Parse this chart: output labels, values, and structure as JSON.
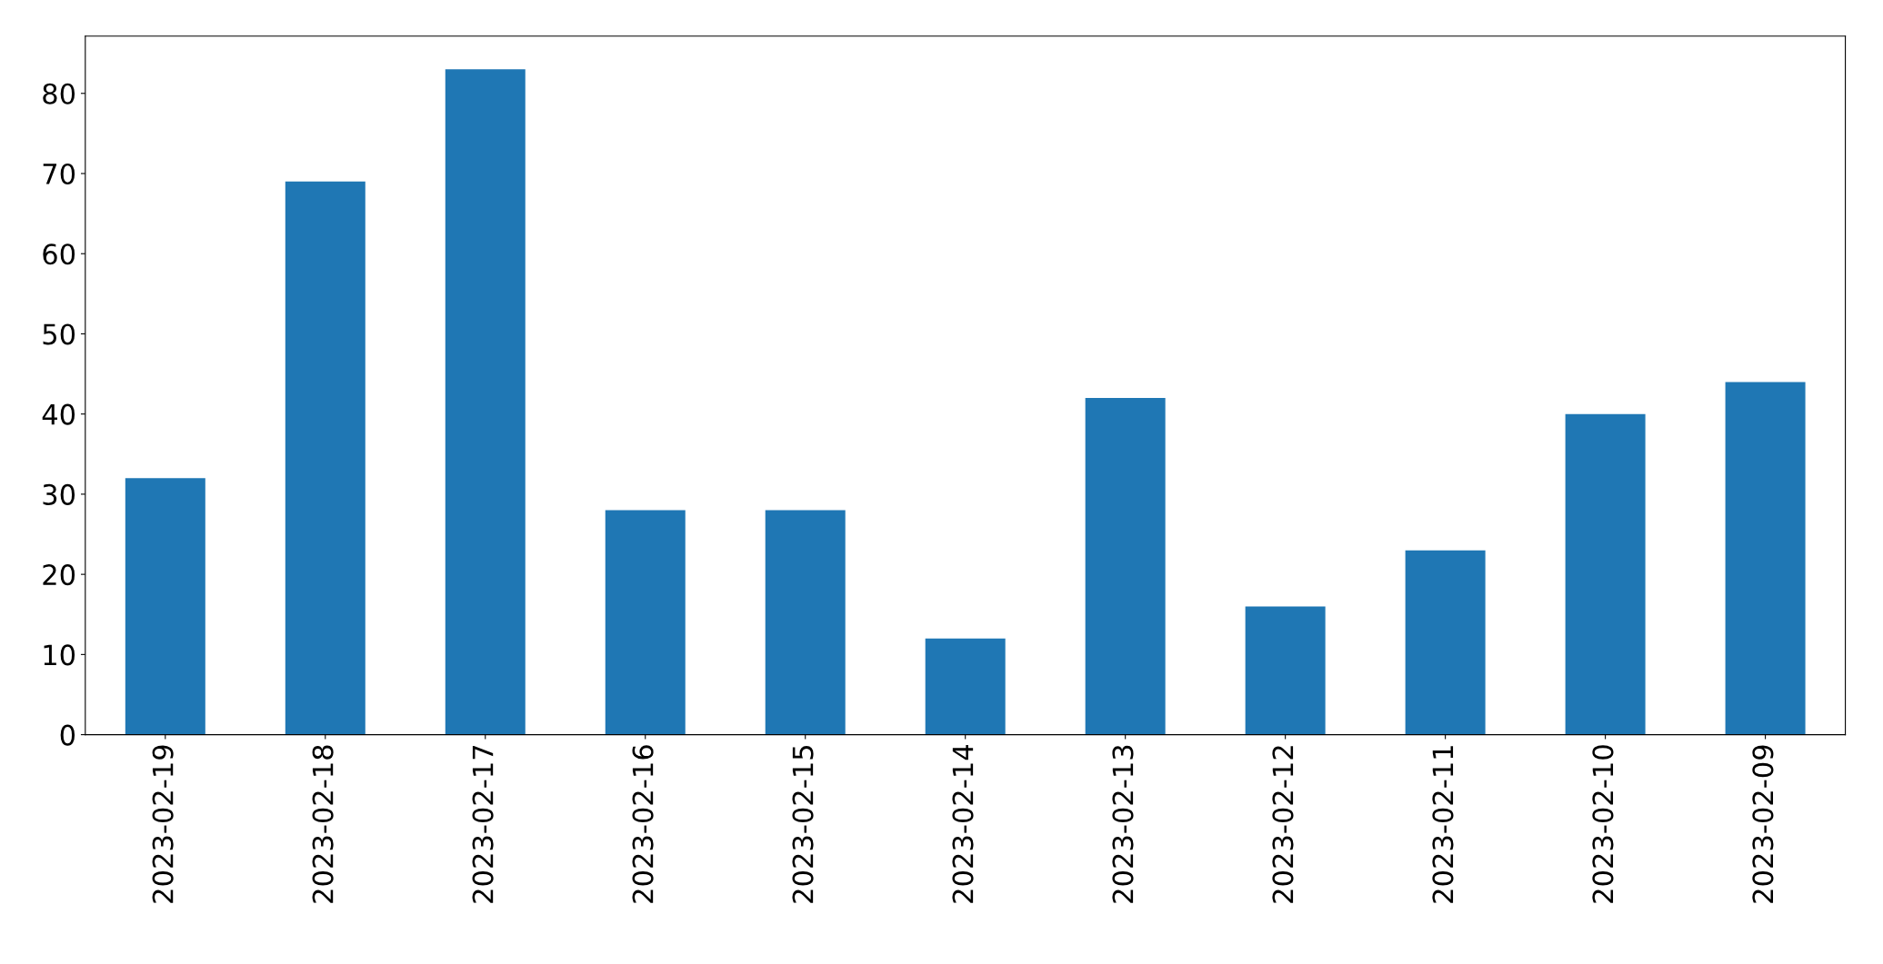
{
  "chart_data": {
    "type": "bar",
    "categories": [
      "2023-02-19",
      "2023-02-18",
      "2023-02-17",
      "2023-02-16",
      "2023-02-15",
      "2023-02-14",
      "2023-02-13",
      "2023-02-12",
      "2023-02-11",
      "2023-02-10",
      "2023-02-09"
    ],
    "values": [
      32,
      69,
      83,
      28,
      28,
      12,
      42,
      16,
      23,
      40,
      44
    ],
    "color": "#1f77b4",
    "ylim": [
      0,
      87.15
    ],
    "yticks": [
      0,
      10,
      20,
      30,
      40,
      50,
      60,
      70,
      80
    ],
    "grid": false,
    "legend": false
  }
}
